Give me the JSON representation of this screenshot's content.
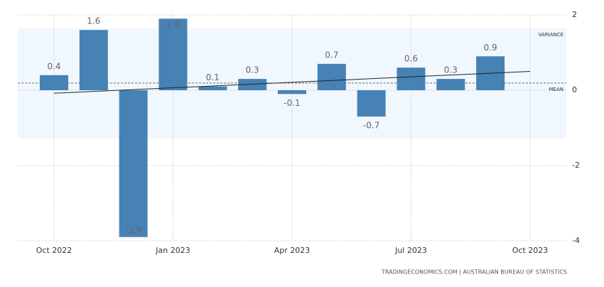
{
  "chart_data": {
    "type": "bar",
    "categories": [
      "Oct 2022",
      null,
      null,
      "Jan 2023",
      null,
      null,
      "Apr 2023",
      null,
      null,
      "Jul 2023",
      null,
      null,
      "Oct 2023"
    ],
    "values": [
      0.4,
      1.6,
      -3.9,
      1.9,
      0.1,
      0.3,
      -0.1,
      0.7,
      -0.7,
      0.6,
      0.3,
      0.9,
      null
    ],
    "color": "#4682b4",
    "ylim": [
      -4,
      2
    ],
    "yticks": [
      2,
      0,
      -2,
      -4
    ],
    "grid": true,
    "mean": 0.19,
    "mean_label": "MEAN",
    "variance_band": [
      -1.28,
      1.64
    ],
    "variance_label": "VARIANCE",
    "trend": [
      -0.08,
      0.5
    ],
    "source": "TRADINGECONOMICS.COM | AUSTRALIAN BUREAU OF STATISTICS"
  }
}
